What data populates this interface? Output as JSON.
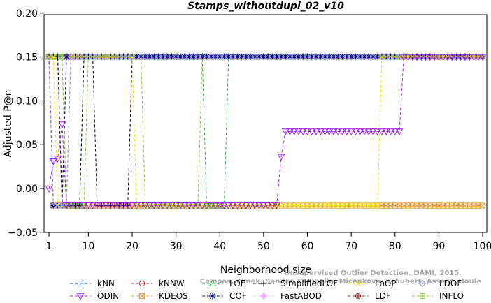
{
  "chart_data": {
    "type": "line",
    "title": "Stamps_withoutdupl_02_v10",
    "xlabel": "Neighborhood size",
    "ylabel": "Adjusted P@n",
    "xlim": [
      0,
      100
    ],
    "ylim": [
      -0.05,
      0.2
    ],
    "xticks": [
      1,
      10,
      20,
      30,
      40,
      50,
      60,
      70,
      80,
      90,
      100
    ],
    "yticks": [
      -0.05,
      0.0,
      0.05,
      0.1,
      0.15,
      0.2
    ],
    "ytick_labels": [
      "−0.05",
      "0.00",
      "0.05",
      "0.10",
      "0.15",
      "0.20"
    ],
    "grid": false,
    "legend_position": "bottom",
    "watermark": [
      "Unsupervised Outlier Detection. DAMI, 2015.",
      "Campos, Zimek, Sander, Campello, Micenkova, Schubert, Assent, Houle"
    ],
    "high": 0.1503,
    "low": -0.0195,
    "series": [
      {
        "name": "kNN",
        "color": "#1f4fa8",
        "marker": "square",
        "segments": [
          [
            1,
            100,
            "high"
          ]
        ]
      },
      {
        "name": "kNNW",
        "color": "#d62728",
        "marker": "circle",
        "segments": [
          [
            1,
            3,
            "high"
          ],
          [
            4,
            5,
            "low"
          ],
          [
            6,
            100,
            "high"
          ]
        ]
      },
      {
        "name": "LOF",
        "color": "#39b54a",
        "marker": "triangle-up",
        "segments": [
          [
            1,
            4,
            "high"
          ],
          [
            5,
            8,
            "low"
          ],
          [
            9,
            36,
            "high"
          ],
          [
            37,
            41,
            "low"
          ],
          [
            42,
            100,
            "high"
          ]
        ]
      },
      {
        "name": "SimplifiedLOF",
        "color": "#000000",
        "marker": "plus",
        "segments": [
          [
            1,
            3,
            "high"
          ],
          [
            4,
            8,
            "low"
          ],
          [
            9,
            11,
            "high"
          ],
          [
            12,
            19,
            "low"
          ],
          [
            20,
            100,
            "high"
          ]
        ]
      },
      {
        "name": "LoOP",
        "color": "#e8e400",
        "marker": "cross",
        "segments": [
          [
            1,
            2,
            "high"
          ],
          [
            3,
            5,
            "low"
          ],
          [
            6,
            20,
            "high"
          ],
          [
            21,
            76,
            "low"
          ],
          [
            77,
            100,
            "high"
          ]
        ]
      },
      {
        "name": "LDOF",
        "color": "#9999e6",
        "marker": "diamond",
        "segments": [
          [
            1,
            1,
            "high"
          ],
          [
            2,
            5,
            "low"
          ],
          [
            6,
            100,
            "high"
          ]
        ]
      },
      {
        "name": "ODIN",
        "color": "#a020f0",
        "marker": "triangle-down",
        "points": [
          [
            1,
            0.0
          ],
          [
            2,
            0.031
          ],
          [
            3,
            0.034
          ],
          [
            4,
            0.073
          ],
          [
            5,
            -0.019
          ],
          [
            6,
            -0.019
          ],
          [
            7,
            -0.019
          ],
          [
            8,
            -0.019
          ],
          [
            9,
            -0.019
          ],
          [
            10,
            -0.019
          ],
          [
            11,
            -0.019
          ],
          [
            12,
            -0.019
          ],
          [
            13,
            -0.019
          ],
          [
            14,
            -0.019
          ],
          [
            15,
            -0.019
          ],
          [
            16,
            -0.019
          ],
          [
            17,
            -0.019
          ],
          [
            18,
            -0.019
          ],
          [
            19,
            -0.019
          ],
          [
            20,
            -0.019
          ],
          [
            21,
            -0.019
          ],
          [
            22,
            -0.019
          ],
          [
            23,
            -0.019
          ],
          [
            24,
            -0.019
          ],
          [
            25,
            -0.019
          ],
          [
            26,
            -0.019
          ],
          [
            27,
            -0.019
          ],
          [
            28,
            -0.019
          ],
          [
            29,
            -0.019
          ],
          [
            30,
            -0.019
          ],
          [
            31,
            -0.019
          ],
          [
            32,
            -0.019
          ],
          [
            33,
            -0.019
          ],
          [
            34,
            -0.019
          ],
          [
            35,
            -0.019
          ],
          [
            36,
            -0.019
          ],
          [
            37,
            -0.019
          ],
          [
            38,
            -0.019
          ],
          [
            39,
            -0.019
          ],
          [
            40,
            -0.019
          ],
          [
            41,
            -0.019
          ],
          [
            42,
            -0.019
          ],
          [
            43,
            -0.019
          ],
          [
            44,
            -0.019
          ],
          [
            45,
            -0.019
          ],
          [
            46,
            -0.019
          ],
          [
            47,
            -0.019
          ],
          [
            48,
            -0.019
          ],
          [
            49,
            -0.019
          ],
          [
            50,
            -0.019
          ],
          [
            51,
            -0.019
          ],
          [
            52,
            -0.019
          ],
          [
            53,
            -0.019
          ],
          [
            54,
            0.036
          ],
          [
            55,
            0.065
          ],
          [
            56,
            0.065
          ],
          [
            57,
            0.065
          ],
          [
            58,
            0.065
          ],
          [
            59,
            0.065
          ],
          [
            60,
            0.065
          ],
          [
            61,
            0.065
          ],
          [
            62,
            0.065
          ],
          [
            63,
            0.065
          ],
          [
            64,
            0.065
          ],
          [
            65,
            0.065
          ],
          [
            66,
            0.065
          ],
          [
            67,
            0.065
          ],
          [
            68,
            0.065
          ],
          [
            69,
            0.065
          ],
          [
            70,
            0.065
          ],
          [
            71,
            0.065
          ],
          [
            72,
            0.065
          ],
          [
            73,
            0.065
          ],
          [
            74,
            0.065
          ],
          [
            75,
            0.065
          ],
          [
            76,
            0.065
          ],
          [
            77,
            0.065
          ],
          [
            78,
            0.065
          ],
          [
            79,
            0.065
          ],
          [
            80,
            0.065
          ],
          [
            81,
            0.065
          ],
          [
            82,
            0.15
          ],
          [
            83,
            0.15
          ],
          [
            84,
            0.15
          ],
          [
            85,
            0.15
          ],
          [
            86,
            0.15
          ],
          [
            87,
            0.15
          ],
          [
            88,
            0.15
          ],
          [
            89,
            0.15
          ],
          [
            90,
            0.15
          ],
          [
            91,
            0.15
          ],
          [
            92,
            0.15
          ],
          [
            93,
            0.15
          ],
          [
            94,
            0.15
          ],
          [
            95,
            0.15
          ],
          [
            96,
            0.15
          ],
          [
            97,
            0.15
          ],
          [
            98,
            0.15
          ],
          [
            99,
            0.15
          ],
          [
            100,
            0.15
          ]
        ]
      },
      {
        "name": "KDEOS",
        "color": "#e59a3a",
        "marker": "square-x",
        "segments": [
          [
            1,
            1,
            "high"
          ],
          [
            2,
            100,
            "low"
          ]
        ]
      },
      {
        "name": "COF",
        "color": "#00008b",
        "marker": "star",
        "segments": [
          [
            1,
            1,
            "high"
          ],
          [
            2,
            4,
            "low"
          ],
          [
            5,
            100,
            "high"
          ]
        ]
      },
      {
        "name": "FastABOD",
        "color": "#f4b3f4",
        "marker": "diamond-filled",
        "segments": [
          [
            1,
            100,
            "high"
          ]
        ]
      },
      {
        "name": "LDF",
        "color": "#b22222",
        "marker": "circle-plus",
        "segments": [
          [
            1,
            1,
            "high"
          ],
          [
            2,
            4,
            "low"
          ],
          [
            5,
            100,
            "high"
          ]
        ]
      },
      {
        "name": "INFLO",
        "color": "#8cc63f",
        "marker": "square-cross",
        "segments": [
          [
            1,
            4,
            "high"
          ],
          [
            5,
            9,
            "low"
          ],
          [
            10,
            22,
            "high"
          ],
          [
            23,
            35,
            "low"
          ],
          [
            36,
            100,
            "high"
          ]
        ]
      }
    ]
  }
}
